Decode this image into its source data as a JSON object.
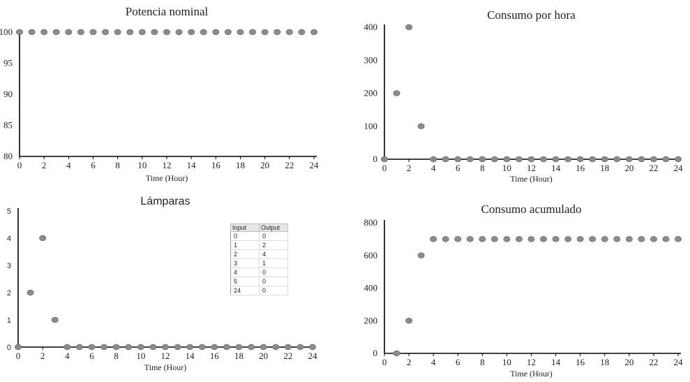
{
  "chart_data": [
    {
      "type": "scatter",
      "title": "Potencia nominal",
      "xlabel": "Time (Hour)",
      "ylabel": "",
      "xlim": [
        0,
        24
      ],
      "ylim": [
        80,
        100
      ],
      "xticks": [
        0,
        2,
        4,
        6,
        8,
        10,
        12,
        14,
        16,
        18,
        20,
        22,
        24
      ],
      "yticks": [
        80,
        85,
        90,
        95,
        100
      ],
      "series": [
        {
          "x": [
            0,
            1,
            2,
            3,
            4,
            5,
            6,
            7,
            8,
            9,
            10,
            11,
            12,
            13,
            14,
            15,
            16,
            17,
            18,
            19,
            20,
            21,
            22,
            23,
            24
          ],
          "y": [
            100,
            100,
            100,
            100,
            100,
            100,
            100,
            100,
            100,
            100,
            100,
            100,
            100,
            100,
            100,
            100,
            100,
            100,
            100,
            100,
            100,
            100,
            100,
            100,
            100
          ]
        }
      ]
    },
    {
      "type": "scatter",
      "title": "Consumo por hora",
      "xlabel": "Time (Hour)",
      "ylabel": "",
      "xlim": [
        0,
        24
      ],
      "ylim": [
        0,
        400
      ],
      "xticks": [
        0,
        2,
        4,
        6,
        8,
        10,
        12,
        14,
        16,
        18,
        20,
        22,
        24
      ],
      "yticks": [
        0,
        100,
        200,
        300,
        400
      ],
      "series": [
        {
          "x": [
            0,
            1,
            2,
            3,
            4,
            5,
            6,
            7,
            8,
            9,
            10,
            11,
            12,
            13,
            14,
            15,
            16,
            17,
            18,
            19,
            20,
            21,
            22,
            23,
            24
          ],
          "y": [
            0,
            200,
            400,
            100,
            0,
            0,
            0,
            0,
            0,
            0,
            0,
            0,
            0,
            0,
            0,
            0,
            0,
            0,
            0,
            0,
            0,
            0,
            0,
            0,
            0
          ]
        }
      ]
    },
    {
      "type": "scatter",
      "title": "Lámparas",
      "xlabel": "Time (Hour)",
      "ylabel": "",
      "xlim": [
        0,
        24
      ],
      "ylim": [
        0,
        5
      ],
      "xticks": [
        0,
        2,
        4,
        6,
        8,
        10,
        12,
        14,
        16,
        18,
        20,
        22,
        24
      ],
      "yticks": [
        0,
        1,
        2,
        3,
        4,
        5
      ],
      "series": [
        {
          "x": [
            0,
            1,
            2,
            3,
            4,
            5,
            6,
            7,
            8,
            9,
            10,
            11,
            12,
            13,
            14,
            15,
            16,
            17,
            18,
            19,
            20,
            21,
            22,
            23,
            24
          ],
          "y": [
            0,
            2,
            4,
            1,
            0,
            0,
            0,
            0,
            0,
            0,
            0,
            0,
            0,
            0,
            0,
            0,
            0,
            0,
            0,
            0,
            0,
            0,
            0,
            0,
            0
          ]
        }
      ],
      "lookup_table": {
        "headers": [
          "Input",
          "Output"
        ],
        "rows": [
          [
            "0",
            "0"
          ],
          [
            "1",
            "2"
          ],
          [
            "2",
            "4"
          ],
          [
            "3",
            "1"
          ],
          [
            "4",
            "0"
          ],
          [
            "5",
            "0"
          ],
          [
            "24",
            "0"
          ]
        ]
      }
    },
    {
      "type": "scatter",
      "title": "Consumo acumulado",
      "xlabel": "Time (Hour)",
      "ylabel": "",
      "xlim": [
        0,
        24
      ],
      "ylim": [
        0,
        800
      ],
      "xticks": [
        0,
        2,
        4,
        6,
        8,
        10,
        12,
        14,
        16,
        18,
        20,
        22,
        24
      ],
      "yticks": [
        0,
        200,
        400,
        600,
        800
      ],
      "series": [
        {
          "x": [
            1,
            2,
            3,
            4,
            5,
            6,
            7,
            8,
            9,
            10,
            11,
            12,
            13,
            14,
            15,
            16,
            17,
            18,
            19,
            20,
            21,
            22,
            23,
            24
          ],
          "y": [
            0,
            200,
            600,
            700,
            700,
            700,
            700,
            700,
            700,
            700,
            700,
            700,
            700,
            700,
            700,
            700,
            700,
            700,
            700,
            700,
            700,
            700,
            700,
            700
          ]
        }
      ]
    }
  ],
  "colors": {
    "points": "#8c8c8c",
    "axes": "#000000",
    "background": "#ffffff"
  }
}
